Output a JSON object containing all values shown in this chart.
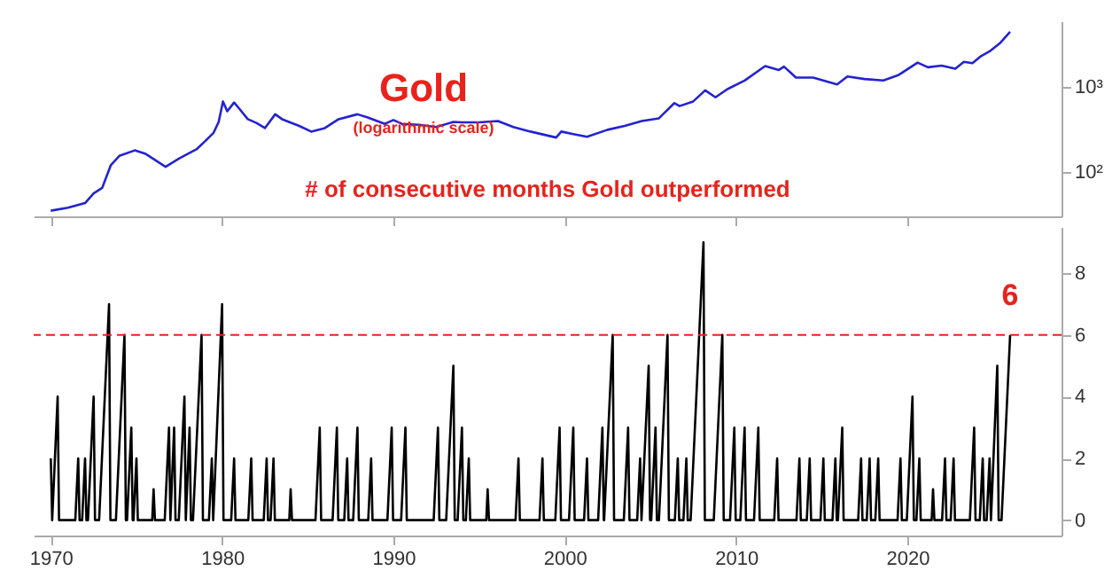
{
  "chart_data": [
    {
      "type": "line",
      "title": "Gold",
      "subtitle": "(logarithmic scale)",
      "x": [
        1970,
        1971,
        1972,
        1972.5,
        1973,
        1973.5,
        1974,
        1974.9,
        1975.5,
        1976.7,
        1977.5,
        1978.5,
        1979,
        1979.5,
        1979.8,
        1980.05,
        1980.3,
        1980.7,
        1981,
        1981.5,
        1982,
        1982.5,
        1983.1,
        1983.5,
        1984.5,
        1985.2,
        1986,
        1986.8,
        1987.9,
        1988.5,
        1989.5,
        1990,
        1990.5,
        1991.5,
        1992.5,
        1993.5,
        1994,
        1995,
        1996.1,
        1997,
        1998,
        1999.5,
        1999.8,
        2000.5,
        2001.3,
        2002.5,
        2003.5,
        2004.5,
        2005.5,
        2006.4,
        2006.7,
        2007.5,
        2008.2,
        2008.8,
        2009.5,
        2010.5,
        2011.7,
        2012.5,
        2012.8,
        2013.5,
        2014.5,
        2015.9,
        2016.5,
        2017.5,
        2018.6,
        2019.5,
        2020.6,
        2021.2,
        2022,
        2022.8,
        2023.3,
        2023.8,
        2024.3,
        2024.8,
        2025.4,
        2026.0
      ],
      "series": [
        {
          "color": "#2323d0",
          "values": [
            35,
            38,
            43,
            56,
            65,
            120,
            155,
            180,
            165,
            115,
            145,
            185,
            230,
            290,
            390,
            680,
            520,
            660,
            560,
            420,
            380,
            330,
            480,
            420,
            350,
            300,
            330,
            420,
            480,
            440,
            370,
            410,
            370,
            360,
            340,
            390,
            385,
            385,
            400,
            340,
            300,
            255,
            300,
            280,
            260,
            315,
            350,
            400,
            430,
            650,
            600,
            680,
            920,
            760,
            950,
            1200,
            1780,
            1600,
            1750,
            1300,
            1300,
            1080,
            1340,
            1250,
            1200,
            1400,
            1950,
            1720,
            1800,
            1650,
            1990,
            1920,
            2330,
            2650,
            3300,
            4500
          ]
        }
      ],
      "xlim": [
        1969,
        2029
      ],
      "xticks": [
        1970,
        1980,
        1990,
        2000,
        2010,
        2020
      ],
      "ylim": [
        30,
        6000
      ],
      "yticks": [
        {
          "value": 100,
          "label": "10²"
        },
        {
          "value": 1000,
          "label": "10³"
        }
      ],
      "log": "y",
      "tick_labels": "y"
    },
    {
      "type": "line",
      "title": "# of consecutive months Gold outperformed",
      "x": [
        1970.0,
        1970.08,
        1970.4,
        1970.48,
        1971.43,
        1971.6,
        1971.68,
        1971.83,
        1972.0,
        1972.08,
        1972.17,
        1972.5,
        1972.58,
        1972.82,
        1973.4,
        1973.48,
        1973.8,
        1974.3,
        1974.38,
        1974.45,
        1974.7,
        1974.78,
        1974.83,
        1975.0,
        1975.08,
        1975.92,
        1976.0,
        1976.08,
        1976.65,
        1976.9,
        1976.98,
        1977.2,
        1977.28,
        1977.47,
        1977.8,
        1977.88,
        1978.1,
        1978.18,
        1978.3,
        1978.8,
        1978.88,
        1979.23,
        1979.4,
        1979.48,
        1980.0,
        1980.08,
        1980.53,
        1980.7,
        1980.78,
        1981.53,
        1981.7,
        1981.78,
        1982.43,
        1982.6,
        1982.68,
        1982.83,
        1983.0,
        1983.08,
        1983.92,
        1984.0,
        1984.08,
        1985.45,
        1985.7,
        1985.78,
        1986.45,
        1986.7,
        1986.78,
        1987.13,
        1987.3,
        1987.38,
        1987.65,
        1987.9,
        1987.98,
        1988.53,
        1988.7,
        1988.78,
        1989.65,
        1989.9,
        1989.98,
        1990.45,
        1990.7,
        1990.78,
        1992.35,
        1992.6,
        1992.68,
        1993.08,
        1993.5,
        1993.58,
        1993.75,
        1994.0,
        1994.08,
        1994.23,
        1994.4,
        1994.48,
        1995.42,
        1995.5,
        1995.58,
        1997.13,
        1997.3,
        1997.38,
        1998.53,
        1998.7,
        1998.78,
        1999.45,
        1999.7,
        1999.78,
        2000.25,
        2000.5,
        2000.58,
        2001.13,
        2001.3,
        2001.38,
        2001.95,
        2002.2,
        2002.28,
        2002.3,
        2002.8,
        2002.88,
        2003.45,
        2003.7,
        2003.78,
        2004.23,
        2004.4,
        2004.48,
        2004.9,
        2004.98,
        2005.05,
        2005.3,
        2005.38,
        2005.5,
        2006.0,
        2006.08,
        2006.43,
        2006.6,
        2006.68,
        2006.93,
        2007.1,
        2007.18,
        2007.35,
        2008.1,
        2008.18,
        2008.7,
        2009.2,
        2009.28,
        2009.65,
        2009.9,
        2009.98,
        2010.25,
        2010.5,
        2010.58,
        2011.05,
        2011.3,
        2011.38,
        2012.23,
        2012.4,
        2012.48,
        2013.53,
        2013.7,
        2013.78,
        2014.13,
        2014.3,
        2014.38,
        2014.93,
        2015.1,
        2015.18,
        2015.63,
        2015.8,
        2015.88,
        2015.95,
        2016.2,
        2016.28,
        2017.13,
        2017.3,
        2017.38,
        2017.63,
        2017.8,
        2017.88,
        2018.13,
        2018.3,
        2018.38,
        2019.43,
        2019.6,
        2019.68,
        2019.97,
        2020.3,
        2020.38,
        2020.53,
        2020.7,
        2020.78,
        2021.42,
        2021.5,
        2021.58,
        2022.03,
        2022.2,
        2022.28,
        2022.53,
        2022.7,
        2022.78,
        2023.65,
        2023.9,
        2023.98,
        2024.23,
        2024.4,
        2024.48,
        2024.63,
        2024.8,
        2024.88,
        2025.25,
        2025.33,
        2025.5,
        2026.0
      ],
      "series": [
        {
          "color": "#000000",
          "values": [
            2,
            0,
            4,
            0,
            0,
            2,
            0,
            0,
            2,
            0,
            0,
            4,
            0,
            0,
            7,
            0,
            0,
            6,
            0,
            0,
            3,
            0,
            0,
            2,
            0,
            0,
            1,
            0,
            0,
            3,
            0,
            3,
            0,
            0,
            4,
            0,
            3,
            0,
            0,
            6,
            0,
            0,
            2,
            0,
            7,
            0,
            0,
            2,
            0,
            0,
            2,
            0,
            0,
            2,
            0,
            0,
            2,
            0,
            0,
            1,
            0,
            0,
            3,
            0,
            0,
            3,
            0,
            0,
            2,
            0,
            0,
            3,
            0,
            0,
            2,
            0,
            0,
            3,
            0,
            0,
            3,
            0,
            0,
            3,
            0,
            0,
            5,
            0,
            0,
            3,
            0,
            0,
            2,
            0,
            0,
            1,
            0,
            0,
            2,
            0,
            0,
            2,
            0,
            0,
            3,
            0,
            0,
            3,
            0,
            0,
            2,
            0,
            0,
            3,
            0,
            0,
            6,
            0,
            0,
            3,
            0,
            0,
            2,
            0,
            5,
            0,
            0,
            3,
            0,
            0,
            6,
            0,
            0,
            2,
            0,
            0,
            2,
            0,
            0,
            9,
            0,
            0,
            6,
            0,
            0,
            3,
            0,
            0,
            3,
            0,
            0,
            3,
            0,
            0,
            2,
            0,
            0,
            2,
            0,
            0,
            2,
            0,
            0,
            2,
            0,
            0,
            2,
            0,
            0,
            3,
            0,
            0,
            2,
            0,
            0,
            2,
            0,
            0,
            2,
            0,
            0,
            2,
            0,
            0,
            4,
            0,
            0,
            2,
            0,
            0,
            1,
            0,
            0,
            2,
            0,
            0,
            2,
            0,
            0,
            3,
            0,
            0,
            2,
            0,
            0,
            2,
            0,
            5,
            0,
            0,
            6
          ]
        }
      ],
      "xlim": [
        1969,
        2029
      ],
      "xticks": [
        1970,
        1980,
        1990,
        2000,
        2010,
        2020
      ],
      "ylim": [
        -0.5,
        9.5
      ],
      "yticks": [
        0,
        2,
        4,
        6,
        8
      ],
      "ref_lines": [
        {
          "axis": "y",
          "value": 6,
          "color": "#e8231b",
          "line_style": "dashed"
        }
      ],
      "annotations": [
        {
          "text": "6",
          "x": 2026.0,
          "y": 6
        }
      ]
    }
  ]
}
